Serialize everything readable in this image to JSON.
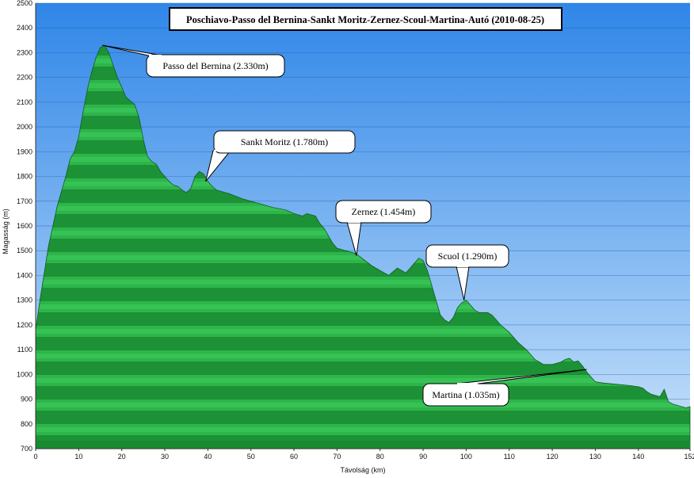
{
  "chart_data": {
    "type": "area",
    "title": "Poschiavo-Passo del Bernina-Sankt Moritz-Zernez-Scoul-Martina-Autó (2010-08-25)",
    "xlabel": "Távolság  (km)",
    "ylabel": "Magasság  (m)",
    "xlim": [
      0,
      152
    ],
    "ylim": [
      700,
      2500
    ],
    "x_ticks": [
      0,
      10,
      20,
      30,
      40,
      50,
      60,
      70,
      80,
      90,
      100,
      110,
      120,
      130,
      140,
      152
    ],
    "y_ticks": [
      700,
      800,
      900,
      1000,
      1100,
      1200,
      1300,
      1400,
      1500,
      1600,
      1700,
      1800,
      1900,
      2000,
      2100,
      2200,
      2300,
      2400,
      2500
    ],
    "grid": "horizontal",
    "colors": {
      "area": "#1f9a3a",
      "sky_top": "#2f86e8",
      "sky_bottom": "#c8e2fa"
    },
    "series": [
      {
        "x": [
          0,
          1,
          3,
          5,
          7,
          8,
          9,
          10,
          11,
          12,
          13,
          14,
          15,
          16,
          17,
          18,
          19,
          20,
          21,
          23,
          24,
          25,
          26,
          27,
          28,
          29,
          30,
          31,
          32,
          33,
          34,
          35,
          36,
          37,
          38,
          39,
          40,
          41,
          42,
          43,
          44,
          45,
          48,
          50,
          52,
          55,
          58,
          60,
          62,
          63,
          65,
          66,
          67,
          68,
          69,
          70,
          72,
          74,
          75,
          78,
          80,
          82,
          84,
          85,
          86,
          87,
          88,
          89,
          90,
          91,
          92,
          93,
          94,
          95,
          96,
          97,
          98,
          99,
          100,
          101,
          102,
          103,
          104,
          105,
          106,
          107,
          108,
          110,
          112,
          114,
          116,
          118,
          120,
          122,
          123,
          124,
          125,
          126,
          127,
          128,
          129,
          130,
          132,
          135,
          138,
          140,
          141,
          142,
          143,
          144,
          145,
          146,
          147,
          148,
          150,
          151,
          152
        ],
        "y": [
          1180,
          1300,
          1520,
          1680,
          1800,
          1870,
          1900,
          1960,
          2060,
          2150,
          2220,
          2280,
          2320,
          2330,
          2300,
          2250,
          2200,
          2160,
          2120,
          2090,
          2040,
          1950,
          1880,
          1860,
          1850,
          1820,
          1800,
          1780,
          1765,
          1760,
          1745,
          1735,
          1750,
          1800,
          1820,
          1810,
          1780,
          1760,
          1745,
          1740,
          1735,
          1730,
          1710,
          1700,
          1690,
          1675,
          1665,
          1650,
          1640,
          1650,
          1640,
          1610,
          1590,
          1560,
          1530,
          1510,
          1500,
          1490,
          1480,
          1440,
          1420,
          1400,
          1430,
          1420,
          1410,
          1430,
          1450,
          1470,
          1460,
          1420,
          1360,
          1300,
          1240,
          1220,
          1210,
          1230,
          1270,
          1290,
          1300,
          1280,
          1260,
          1250,
          1250,
          1250,
          1240,
          1220,
          1200,
          1170,
          1130,
          1100,
          1060,
          1040,
          1040,
          1050,
          1060,
          1065,
          1050,
          1055,
          1035,
          1010,
          990,
          970,
          965,
          960,
          955,
          950,
          945,
          930,
          920,
          915,
          910,
          940,
          890,
          880,
          870,
          865,
          870
        ]
      }
    ],
    "annotations": [
      {
        "text": "Passo del Bernina (2.330m)",
        "x": 15.5,
        "y": 2330
      },
      {
        "text": "Sankt Moritz (1.780m)",
        "x": 39.5,
        "y": 1780
      },
      {
        "text": "Zernez (1.454m)",
        "x": 74.5,
        "y": 1480
      },
      {
        "text": "Scuol (1.290m)",
        "x": 99.5,
        "y": 1300
      },
      {
        "text": "Martina (1.035m)",
        "x": 128,
        "y": 1020
      }
    ]
  }
}
